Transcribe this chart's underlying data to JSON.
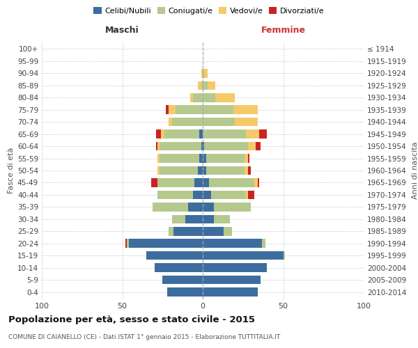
{
  "age_groups": [
    "0-4",
    "5-9",
    "10-14",
    "15-19",
    "20-24",
    "25-29",
    "30-34",
    "35-39",
    "40-44",
    "45-49",
    "50-54",
    "55-59",
    "60-64",
    "65-69",
    "70-74",
    "75-79",
    "80-84",
    "85-89",
    "90-94",
    "95-99",
    "100+"
  ],
  "birth_years": [
    "2010-2014",
    "2005-2009",
    "2000-2004",
    "1995-1999",
    "1990-1994",
    "1985-1989",
    "1980-1984",
    "1975-1979",
    "1970-1974",
    "1965-1969",
    "1960-1964",
    "1955-1959",
    "1950-1954",
    "1945-1949",
    "1940-1944",
    "1935-1939",
    "1930-1934",
    "1925-1929",
    "1920-1924",
    "1915-1919",
    "≤ 1914"
  ],
  "colors": {
    "celibe": "#3d6d9e",
    "coniugato": "#b5c98e",
    "vedovo": "#f5c96a",
    "divorziato": "#cc2222"
  },
  "maschi": {
    "celibe": [
      22,
      25,
      30,
      35,
      46,
      18,
      11,
      9,
      6,
      5,
      3,
      2,
      1,
      2,
      0,
      0,
      0,
      0,
      0,
      0,
      0
    ],
    "coniugato": [
      0,
      0,
      0,
      0,
      1,
      3,
      8,
      22,
      22,
      23,
      24,
      25,
      26,
      22,
      19,
      17,
      6,
      1,
      0,
      0,
      0
    ],
    "vedovo": [
      0,
      0,
      0,
      0,
      0,
      0,
      0,
      0,
      0,
      0,
      1,
      1,
      1,
      2,
      2,
      4,
      2,
      2,
      1,
      0,
      0
    ],
    "divorziato": [
      0,
      0,
      0,
      0,
      1,
      0,
      0,
      0,
      0,
      4,
      0,
      0,
      1,
      3,
      0,
      2,
      0,
      0,
      0,
      0,
      0
    ]
  },
  "femmine": {
    "nubile": [
      34,
      36,
      40,
      50,
      37,
      13,
      7,
      7,
      5,
      4,
      2,
      2,
      1,
      0,
      0,
      0,
      0,
      0,
      0,
      0,
      0
    ],
    "coniugata": [
      0,
      0,
      0,
      1,
      2,
      5,
      10,
      23,
      22,
      28,
      24,
      24,
      27,
      27,
      20,
      19,
      8,
      3,
      1,
      0,
      0
    ],
    "vedova": [
      0,
      0,
      0,
      0,
      0,
      0,
      0,
      0,
      1,
      2,
      2,
      2,
      5,
      8,
      14,
      15,
      12,
      5,
      2,
      0,
      0
    ],
    "divorziata": [
      0,
      0,
      0,
      0,
      0,
      0,
      0,
      0,
      4,
      1,
      2,
      1,
      3,
      5,
      0,
      0,
      0,
      0,
      0,
      0,
      0
    ]
  },
  "title": "Popolazione per età, sesso e stato civile - 2015",
  "subtitle": "COMUNE DI CAIANELLO (CE) - Dati ISTAT 1° gennaio 2015 - Elaborazione TUTTITALIA.IT",
  "ylabel_left": "Fasce di età",
  "ylabel_right": "Anni di nascita",
  "xlabel_maschi": "Maschi",
  "xlabel_femmine": "Femmine",
  "xlim": 100,
  "background_color": "#ffffff",
  "grid_color": "#cccccc",
  "legend_labels": [
    "Celibi/Nubili",
    "Coniugati/e",
    "Vedovi/e",
    "Divorziati/e"
  ]
}
